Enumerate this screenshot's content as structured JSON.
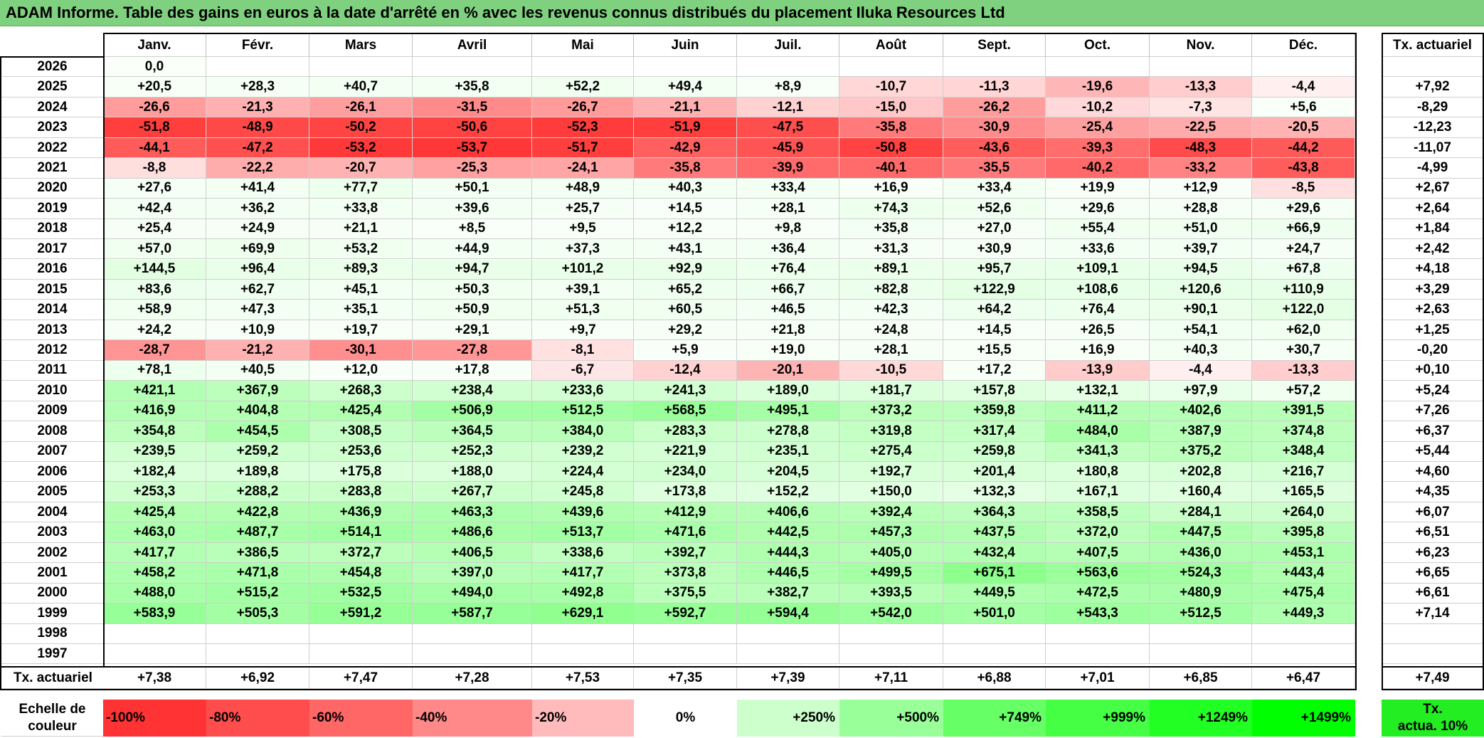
{
  "title": "ADAM Informe. Table des gains en euros à la date d'arrêté en % avec les revenus connus distribués du placement Iluka Resources Ltd",
  "months": [
    "Janv.",
    "Févr.",
    "Mars",
    "Avril",
    "Mai",
    "Juin",
    "Juil.",
    "Août",
    "Sept.",
    "Oct.",
    "Nov.",
    "Déc."
  ],
  "rate_header": "Tx. actuariel",
  "rows": [
    {
      "year": "2026",
      "values": [
        "0,0",
        "",
        "",
        "",
        "",
        "",
        "",
        "",
        "",
        "",
        "",
        ""
      ],
      "rate": ""
    },
    {
      "year": "2025",
      "values": [
        "+20,5",
        "+28,3",
        "+40,7",
        "+35,8",
        "+52,2",
        "+49,4",
        "+8,9",
        "-10,7",
        "-11,3",
        "-19,6",
        "-13,3",
        "-4,4"
      ],
      "rate": "+7,92"
    },
    {
      "year": "2024",
      "values": [
        "-26,6",
        "-21,3",
        "-26,1",
        "-31,5",
        "-26,7",
        "-21,1",
        "-12,1",
        "-15,0",
        "-26,2",
        "-10,2",
        "-7,3",
        "+5,6"
      ],
      "rate": "-8,29"
    },
    {
      "year": "2023",
      "values": [
        "-51,8",
        "-48,9",
        "-50,2",
        "-50,6",
        "-52,3",
        "-51,9",
        "-47,5",
        "-35,8",
        "-30,9",
        "-25,4",
        "-22,5",
        "-20,5"
      ],
      "rate": "-12,23"
    },
    {
      "year": "2022",
      "values": [
        "-44,1",
        "-47,2",
        "-53,2",
        "-53,7",
        "-51,7",
        "-42,9",
        "-45,9",
        "-50,8",
        "-43,6",
        "-39,3",
        "-48,3",
        "-44,2"
      ],
      "rate": "-11,07"
    },
    {
      "year": "2021",
      "values": [
        "-8,8",
        "-22,2",
        "-20,7",
        "-25,3",
        "-24,1",
        "-35,8",
        "-39,9",
        "-40,1",
        "-35,5",
        "-40,2",
        "-33,2",
        "-43,8"
      ],
      "rate": "-4,99"
    },
    {
      "year": "2020",
      "values": [
        "+27,6",
        "+41,4",
        "+77,7",
        "+50,1",
        "+48,9",
        "+40,3",
        "+33,4",
        "+16,9",
        "+33,4",
        "+19,9",
        "+12,9",
        "-8,5"
      ],
      "rate": "+2,67"
    },
    {
      "year": "2019",
      "values": [
        "+42,4",
        "+36,2",
        "+33,8",
        "+39,6",
        "+25,7",
        "+14,5",
        "+28,1",
        "+74,3",
        "+52,6",
        "+29,6",
        "+28,8",
        "+29,6"
      ],
      "rate": "+2,64"
    },
    {
      "year": "2018",
      "values": [
        "+25,4",
        "+24,9",
        "+21,1",
        "+8,5",
        "+9,5",
        "+12,2",
        "+9,8",
        "+35,8",
        "+27,0",
        "+55,4",
        "+51,0",
        "+66,9"
      ],
      "rate": "+1,84"
    },
    {
      "year": "2017",
      "values": [
        "+57,0",
        "+69,9",
        "+53,2",
        "+44,9",
        "+37,3",
        "+43,1",
        "+36,4",
        "+31,3",
        "+30,9",
        "+33,6",
        "+39,7",
        "+24,7"
      ],
      "rate": "+2,42"
    },
    {
      "year": "2016",
      "values": [
        "+144,5",
        "+96,4",
        "+89,3",
        "+94,7",
        "+101,2",
        "+92,9",
        "+76,4",
        "+89,1",
        "+95,7",
        "+109,1",
        "+94,5",
        "+67,8"
      ],
      "rate": "+4,18"
    },
    {
      "year": "2015",
      "values": [
        "+83,6",
        "+62,7",
        "+45,1",
        "+50,3",
        "+39,1",
        "+65,2",
        "+66,7",
        "+82,8",
        "+122,9",
        "+108,6",
        "+120,6",
        "+110,9"
      ],
      "rate": "+3,29"
    },
    {
      "year": "2014",
      "values": [
        "+58,9",
        "+47,3",
        "+35,1",
        "+50,9",
        "+51,3",
        "+60,5",
        "+46,5",
        "+42,3",
        "+64,2",
        "+76,4",
        "+90,1",
        "+122,0"
      ],
      "rate": "+2,63"
    },
    {
      "year": "2013",
      "values": [
        "+24,2",
        "+10,9",
        "+19,7",
        "+29,1",
        "+9,7",
        "+29,2",
        "+21,8",
        "+24,8",
        "+14,5",
        "+26,5",
        "+54,1",
        "+62,0"
      ],
      "rate": "+1,25"
    },
    {
      "year": "2012",
      "values": [
        "-28,7",
        "-21,2",
        "-30,1",
        "-27,8",
        "-8,1",
        "+5,9",
        "+19,0",
        "+28,1",
        "+15,5",
        "+16,9",
        "+40,3",
        "+30,7"
      ],
      "rate": "-0,20"
    },
    {
      "year": "2011",
      "values": [
        "+78,1",
        "+40,5",
        "+12,0",
        "+17,8",
        "-6,7",
        "-12,4",
        "-20,1",
        "-10,5",
        "+17,2",
        "-13,9",
        "-4,4",
        "-13,3"
      ],
      "rate": "+0,10"
    },
    {
      "year": "2010",
      "values": [
        "+421,1",
        "+367,9",
        "+268,3",
        "+238,4",
        "+233,6",
        "+241,3",
        "+189,0",
        "+181,7",
        "+157,8",
        "+132,1",
        "+97,9",
        "+57,2"
      ],
      "rate": "+5,24"
    },
    {
      "year": "2009",
      "values": [
        "+416,9",
        "+404,8",
        "+425,4",
        "+506,9",
        "+512,5",
        "+568,5",
        "+495,1",
        "+373,2",
        "+359,8",
        "+411,2",
        "+402,6",
        "+391,5"
      ],
      "rate": "+7,26"
    },
    {
      "year": "2008",
      "values": [
        "+354,8",
        "+454,5",
        "+308,5",
        "+364,5",
        "+384,0",
        "+283,3",
        "+278,8",
        "+319,8",
        "+317,4",
        "+484,0",
        "+387,9",
        "+374,8"
      ],
      "rate": "+6,37"
    },
    {
      "year": "2007",
      "values": [
        "+239,5",
        "+259,2",
        "+253,6",
        "+252,3",
        "+239,2",
        "+221,9",
        "+235,1",
        "+275,4",
        "+259,8",
        "+341,3",
        "+375,2",
        "+348,4"
      ],
      "rate": "+5,44"
    },
    {
      "year": "2006",
      "values": [
        "+182,4",
        "+189,8",
        "+175,8",
        "+188,0",
        "+224,4",
        "+234,0",
        "+204,5",
        "+192,7",
        "+201,4",
        "+180,8",
        "+202,8",
        "+216,7"
      ],
      "rate": "+4,60"
    },
    {
      "year": "2005",
      "values": [
        "+253,3",
        "+288,2",
        "+283,8",
        "+267,7",
        "+245,8",
        "+173,8",
        "+152,2",
        "+150,0",
        "+132,3",
        "+167,1",
        "+160,4",
        "+165,5"
      ],
      "rate": "+4,35"
    },
    {
      "year": "2004",
      "values": [
        "+425,4",
        "+422,8",
        "+436,9",
        "+463,3",
        "+439,6",
        "+412,9",
        "+406,6",
        "+392,4",
        "+364,3",
        "+358,5",
        "+284,1",
        "+264,0"
      ],
      "rate": "+6,07"
    },
    {
      "year": "2003",
      "values": [
        "+463,0",
        "+487,7",
        "+514,1",
        "+486,6",
        "+513,7",
        "+471,6",
        "+442,5",
        "+457,3",
        "+437,5",
        "+372,0",
        "+447,5",
        "+395,8"
      ],
      "rate": "+6,51"
    },
    {
      "year": "2002",
      "values": [
        "+417,7",
        "+386,5",
        "+372,7",
        "+406,5",
        "+338,6",
        "+392,7",
        "+444,3",
        "+405,0",
        "+432,4",
        "+407,5",
        "+436,0",
        "+453,1"
      ],
      "rate": "+6,23"
    },
    {
      "year": "2001",
      "values": [
        "+458,2",
        "+471,8",
        "+454,8",
        "+397,0",
        "+417,7",
        "+373,8",
        "+446,5",
        "+499,5",
        "+675,1",
        "+563,6",
        "+524,3",
        "+443,4"
      ],
      "rate": "+6,65"
    },
    {
      "year": "2000",
      "values": [
        "+488,0",
        "+515,2",
        "+532,5",
        "+494,0",
        "+492,8",
        "+375,5",
        "+382,7",
        "+393,5",
        "+449,5",
        "+472,5",
        "+480,9",
        "+475,4"
      ],
      "rate": "+6,61"
    },
    {
      "year": "1999",
      "values": [
        "+583,9",
        "+505,3",
        "+591,2",
        "+587,7",
        "+629,1",
        "+592,7",
        "+594,4",
        "+542,0",
        "+501,0",
        "+543,3",
        "+512,5",
        "+449,3"
      ],
      "rate": "+7,14"
    },
    {
      "year": "1998",
      "values": [
        "",
        "",
        "",
        "",
        "",
        "",
        "",
        "",
        "",
        "",
        "",
        ""
      ],
      "rate": ""
    },
    {
      "year": "1997",
      "values": [
        "",
        "",
        "",
        "",
        "",
        "",
        "",
        "",
        "",
        "",
        "",
        ""
      ],
      "rate": ""
    }
  ],
  "footer": {
    "label": "Tx. actuariel",
    "values": [
      "+7,38",
      "+6,92",
      "+7,47",
      "+7,28",
      "+7,53",
      "+7,35",
      "+7,39",
      "+7,11",
      "+6,88",
      "+7,01",
      "+6,85",
      "+6,47"
    ],
    "rate": "+7,49"
  },
  "legend": {
    "label_line1": "Echelle de",
    "label_line2": "couleur",
    "items": [
      "-100%",
      "-80%",
      "-60%",
      "-40%",
      "-20%",
      "0%",
      "+250%",
      "+500%",
      "+749%",
      "+999%",
      "+1249%",
      "+1499%"
    ],
    "colors": [
      "#ff3333",
      "#ff4d4d",
      "#ff6666",
      "#ff8888",
      "#ffbbbb",
      "#ffffff",
      "#ccffcc",
      "#99ff99",
      "#66ff66",
      "#44ff44",
      "#22ff22",
      "#00ff00"
    ],
    "rate_line1": "Tx.",
    "rate_line2": "actua. 10%",
    "rate_color": "#22ee22"
  }
}
